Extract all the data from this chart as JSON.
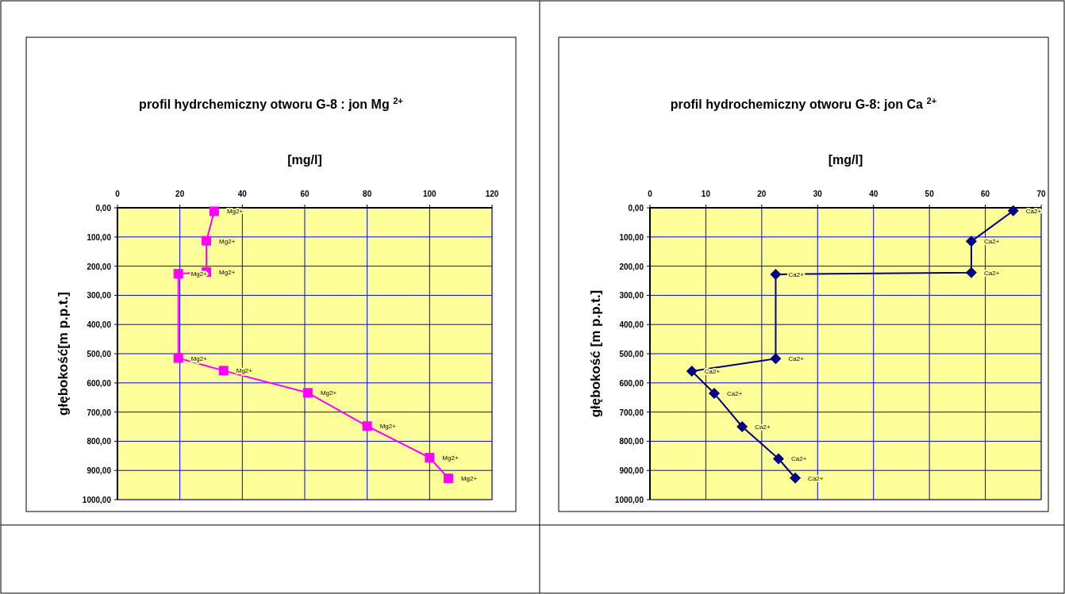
{
  "chart_data": [
    {
      "type": "line",
      "title": "profil hydrchemiczny otworu G-8 : jon Mg $^{2+}$",
      "xlabel": "[mg/l]",
      "ylabel": "głębokość[m p.p.t.]",
      "xlim": [
        0,
        120
      ],
      "xticks": [
        0,
        20,
        40,
        60,
        80,
        100,
        120
      ],
      "ylim": [
        1000,
        0
      ],
      "yticks": [
        {
          "value": 0,
          "label": "0,00"
        },
        {
          "value": 100,
          "label": "100,00"
        },
        {
          "value": 200,
          "label": "200,00"
        },
        {
          "value": 300,
          "label": "300,00"
        },
        {
          "value": 400,
          "label": "400,00"
        },
        {
          "value": 500,
          "label": "500,00"
        },
        {
          "value": 600,
          "label": "600,00"
        },
        {
          "value": 700,
          "label": "700,00"
        },
        {
          "value": 800,
          "label": "800,00"
        },
        {
          "value": 900,
          "label": "900,00"
        },
        {
          "value": 1000,
          "label": "1000,00"
        }
      ],
      "grid": true,
      "marker": "square",
      "line_style": "solid",
      "series": [
        {
          "color": "#ff00ff",
          "x": [
            31,
            28.5,
            28.5,
            19.5,
            19.5,
            34,
            61,
            80,
            100,
            106
          ],
          "values": [
            12,
            113,
            220,
            226,
            515,
            558,
            634,
            748,
            856,
            927
          ],
          "value_labels": [
            "Mg2+",
            "Mg2+",
            "Mg2+",
            "Mg2+",
            "Mg2+",
            "Mg2+",
            "Mg2+",
            "Mg2+",
            "Mg2+",
            "Mg2+"
          ]
        }
      ]
    },
    {
      "type": "line",
      "title": "profil hydrochemiczny otworu G-8: jon Ca $^{2+}$",
      "xlabel": "[mg/l]",
      "ylabel": "głębokość [m p.p.t.]",
      "xlim": [
        0,
        70
      ],
      "xticks": [
        0,
        10,
        20,
        30,
        40,
        50,
        60,
        70
      ],
      "ylim": [
        1000,
        0
      ],
      "yticks": [
        {
          "value": 0,
          "label": "0,00"
        },
        {
          "value": 100,
          "label": "100,00"
        },
        {
          "value": 200,
          "label": "200,00"
        },
        {
          "value": 300,
          "label": "300,00"
        },
        {
          "value": 400,
          "label": "400,00"
        },
        {
          "value": 500,
          "label": "500,00"
        },
        {
          "value": 600,
          "label": "600,00"
        },
        {
          "value": 700,
          "label": "700,00"
        },
        {
          "value": 800,
          "label": "800,00"
        },
        {
          "value": 900,
          "label": "900,00"
        },
        {
          "value": 1000,
          "label": "1000,00"
        }
      ],
      "grid": true,
      "marker": "diamond",
      "line_style": "solid",
      "series": [
        {
          "color": "#000080",
          "x": [
            65,
            57.5,
            57.5,
            22.5,
            22.5,
            7.5,
            11.5,
            16.5,
            23,
            26
          ],
          "values": [
            10,
            115,
            222,
            228,
            517,
            560,
            636,
            750,
            860,
            926
          ],
          "value_labels": [
            "Ca2+",
            "Ca2+",
            "Ca2+",
            "Ca2+",
            "Ca2+",
            "Ca2+",
            "Ca2+",
            "Ca2+",
            "Ca2+",
            "Ca2+"
          ]
        }
      ]
    }
  ]
}
